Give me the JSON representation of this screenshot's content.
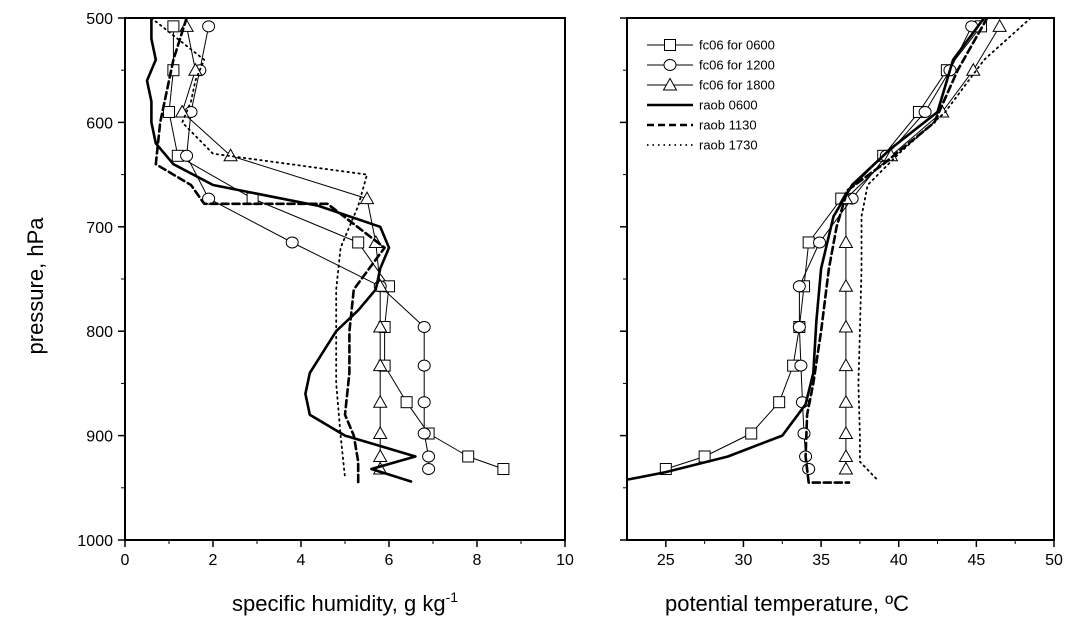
{
  "figure": {
    "ylabel": "pressure, hPa",
    "left_xlabel_main": "specific humidity, g kg",
    "left_xlabel_sup": "-1",
    "right_xlabel": "potential temperature, ºC"
  },
  "chart_data": [
    {
      "type": "line",
      "xlabel": "specific humidity, g kg-1",
      "ylabel": "pressure, hPa",
      "xlim": [
        0,
        10
      ],
      "ylim": [
        1000,
        500
      ],
      "y_inverted": true,
      "xticks": [
        "0",
        "2",
        "4",
        "6",
        "8",
        "10"
      ],
      "yticks": [
        "500",
        "600",
        "700",
        "800",
        "900",
        "1000"
      ],
      "legend": "none",
      "series": [
        {
          "name": "fc06 for 0600",
          "marker": "square",
          "style": "thin-solid",
          "points": [
            [
              1.1,
              508
            ],
            [
              1.1,
              550
            ],
            [
              1.0,
              590
            ],
            [
              1.2,
              632
            ],
            [
              2.9,
              673
            ],
            [
              5.3,
              715
            ],
            [
              6.0,
              757
            ],
            [
              5.9,
              796
            ],
            [
              5.9,
              833
            ],
            [
              6.4,
              868
            ],
            [
              6.9,
              898
            ],
            [
              7.8,
              920
            ],
            [
              8.6,
              932
            ]
          ]
        },
        {
          "name": "fc06 for 1200",
          "marker": "circle",
          "style": "thin-solid",
          "points": [
            [
              1.9,
              508
            ],
            [
              1.7,
              550
            ],
            [
              1.5,
              590
            ],
            [
              1.4,
              632
            ],
            [
              1.9,
              673
            ],
            [
              3.8,
              715
            ],
            [
              5.8,
              757
            ],
            [
              6.8,
              796
            ],
            [
              6.8,
              833
            ],
            [
              6.8,
              868
            ],
            [
              6.8,
              898
            ],
            [
              6.9,
              920
            ],
            [
              6.9,
              932
            ]
          ]
        },
        {
          "name": "fc06 for 1800",
          "marker": "triangle",
          "style": "thin-solid",
          "points": [
            [
              1.4,
              508
            ],
            [
              1.6,
              550
            ],
            [
              1.3,
              590
            ],
            [
              2.4,
              632
            ],
            [
              5.5,
              673
            ],
            [
              5.7,
              715
            ],
            [
              5.8,
              757
            ],
            [
              5.8,
              796
            ],
            [
              5.8,
              833
            ],
            [
              5.8,
              868
            ],
            [
              5.8,
              898
            ],
            [
              5.8,
              920
            ],
            [
              5.8,
              932
            ]
          ]
        },
        {
          "name": "raob 0600",
          "marker": "none",
          "style": "thick-solid",
          "points": [
            [
              0.6,
              500
            ],
            [
              0.6,
              520
            ],
            [
              0.7,
              540
            ],
            [
              0.5,
              560
            ],
            [
              0.6,
              580
            ],
            [
              0.6,
              600
            ],
            [
              0.7,
              620
            ],
            [
              1.1,
              640
            ],
            [
              2.0,
              660
            ],
            [
              4.4,
              680
            ],
            [
              5.8,
              700
            ],
            [
              6.0,
              720
            ],
            [
              5.8,
              740
            ],
            [
              5.7,
              760
            ],
            [
              5.3,
              780
            ],
            [
              4.8,
              800
            ],
            [
              4.5,
              820
            ],
            [
              4.2,
              840
            ],
            [
              4.1,
              860
            ],
            [
              4.2,
              880
            ],
            [
              5.0,
              900
            ],
            [
              5.8,
              910
            ],
            [
              6.6,
              920
            ],
            [
              5.6,
              932
            ],
            [
              6.5,
              944
            ]
          ]
        },
        {
          "name": "raob 1130",
          "marker": "none",
          "style": "thick-dashed",
          "points": [
            [
              1.4,
              500
            ],
            [
              1.1,
              540
            ],
            [
              0.9,
              580
            ],
            [
              0.8,
              600
            ],
            [
              0.7,
              640
            ],
            [
              1.5,
              660
            ],
            [
              1.8,
              678
            ],
            [
              4.6,
              678
            ],
            [
              5.9,
              720
            ],
            [
              5.2,
              760
            ],
            [
              5.1,
              800
            ],
            [
              5.1,
              840
            ],
            [
              5.0,
              880
            ],
            [
              5.2,
              900
            ],
            [
              5.3,
              925
            ],
            [
              5.3,
              945
            ]
          ]
        },
        {
          "name": "raob 1730",
          "marker": "none",
          "style": "dotted",
          "points": [
            [
              0.6,
              500
            ],
            [
              1.2,
              520
            ],
            [
              1.8,
              540
            ],
            [
              1.6,
              560
            ],
            [
              1.5,
              580
            ],
            [
              1.3,
              600
            ],
            [
              2.0,
              630
            ],
            [
              5.5,
              650
            ],
            [
              5.3,
              680
            ],
            [
              4.9,
              720
            ],
            [
              4.8,
              760
            ],
            [
              4.8,
              800
            ],
            [
              4.8,
              850
            ],
            [
              4.9,
              900
            ],
            [
              5.0,
              940
            ]
          ]
        }
      ]
    },
    {
      "type": "line",
      "xlabel": "potential temperature, ºC",
      "xlim": [
        22.5,
        50
      ],
      "ylim": [
        1000,
        500
      ],
      "y_inverted": true,
      "xticks": [
        "25",
        "30",
        "35",
        "40",
        "45",
        "50"
      ],
      "legend": "top-left",
      "series": [
        {
          "name": "fc06 for 0600",
          "marker": "square",
          "style": "thin-solid",
          "points": [
            [
              45.3,
              508
            ],
            [
              43.1,
              550
            ],
            [
              41.3,
              590
            ],
            [
              39.0,
              632
            ],
            [
              36.3,
              673
            ],
            [
              34.2,
              715
            ],
            [
              33.9,
              757
            ],
            [
              33.6,
              796
            ],
            [
              33.2,
              833
            ],
            [
              32.3,
              868
            ],
            [
              30.5,
              898
            ],
            [
              27.5,
              920
            ],
            [
              25.0,
              932
            ]
          ]
        },
        {
          "name": "fc06 for 1200",
          "marker": "circle",
          "style": "thin-solid",
          "points": [
            [
              44.7,
              508
            ],
            [
              43.3,
              550
            ],
            [
              41.7,
              590
            ],
            [
              39.2,
              632
            ],
            [
              37.0,
              673
            ],
            [
              34.9,
              715
            ],
            [
              33.6,
              757
            ],
            [
              33.6,
              796
            ],
            [
              33.7,
              833
            ],
            [
              33.8,
              868
            ],
            [
              33.9,
              898
            ],
            [
              34.0,
              920
            ],
            [
              34.2,
              932
            ]
          ]
        },
        {
          "name": "fc06 for 1800",
          "marker": "triangle",
          "style": "thin-solid",
          "points": [
            [
              46.5,
              508
            ],
            [
              44.8,
              550
            ],
            [
              42.8,
              590
            ],
            [
              39.5,
              632
            ],
            [
              36.6,
              673
            ],
            [
              36.6,
              715
            ],
            [
              36.6,
              757
            ],
            [
              36.6,
              796
            ],
            [
              36.6,
              833
            ],
            [
              36.6,
              868
            ],
            [
              36.6,
              898
            ],
            [
              36.6,
              920
            ],
            [
              36.6,
              932
            ]
          ]
        },
        {
          "name": "raob 0600",
          "marker": "none",
          "style": "thick-solid",
          "points": [
            [
              45.5,
              500
            ],
            [
              43.5,
              540
            ],
            [
              42.5,
              590
            ],
            [
              39.5,
              625
            ],
            [
              37.0,
              660
            ],
            [
              35.8,
              690
            ],
            [
              35.0,
              740
            ],
            [
              34.7,
              790
            ],
            [
              34.5,
              840
            ],
            [
              34.0,
              870
            ],
            [
              32.5,
              900
            ],
            [
              29.0,
              920
            ],
            [
              25.0,
              935
            ],
            [
              22.6,
              942
            ]
          ]
        },
        {
          "name": "raob 1130",
          "marker": "none",
          "style": "thick-dashed",
          "points": [
            [
              45.7,
              500
            ],
            [
              43.8,
              550
            ],
            [
              42.3,
              600
            ],
            [
              39.0,
              640
            ],
            [
              36.7,
              665
            ],
            [
              36.0,
              700
            ],
            [
              35.5,
              740
            ],
            [
              35.0,
              800
            ],
            [
              34.5,
              850
            ],
            [
              34.1,
              880
            ],
            [
              34.0,
              920
            ],
            [
              34.2,
              945
            ],
            [
              36.8,
              945
            ]
          ]
        },
        {
          "name": "raob 1730",
          "marker": "none",
          "style": "dotted",
          "points": [
            [
              48.5,
              500
            ],
            [
              45.5,
              540
            ],
            [
              43.0,
              590
            ],
            [
              40.0,
              630
            ],
            [
              38.0,
              660
            ],
            [
              37.6,
              690
            ],
            [
              37.6,
              740
            ],
            [
              37.5,
              800
            ],
            [
              37.4,
              850
            ],
            [
              37.5,
              900
            ],
            [
              37.5,
              925
            ],
            [
              38.6,
              942
            ]
          ]
        }
      ]
    }
  ]
}
